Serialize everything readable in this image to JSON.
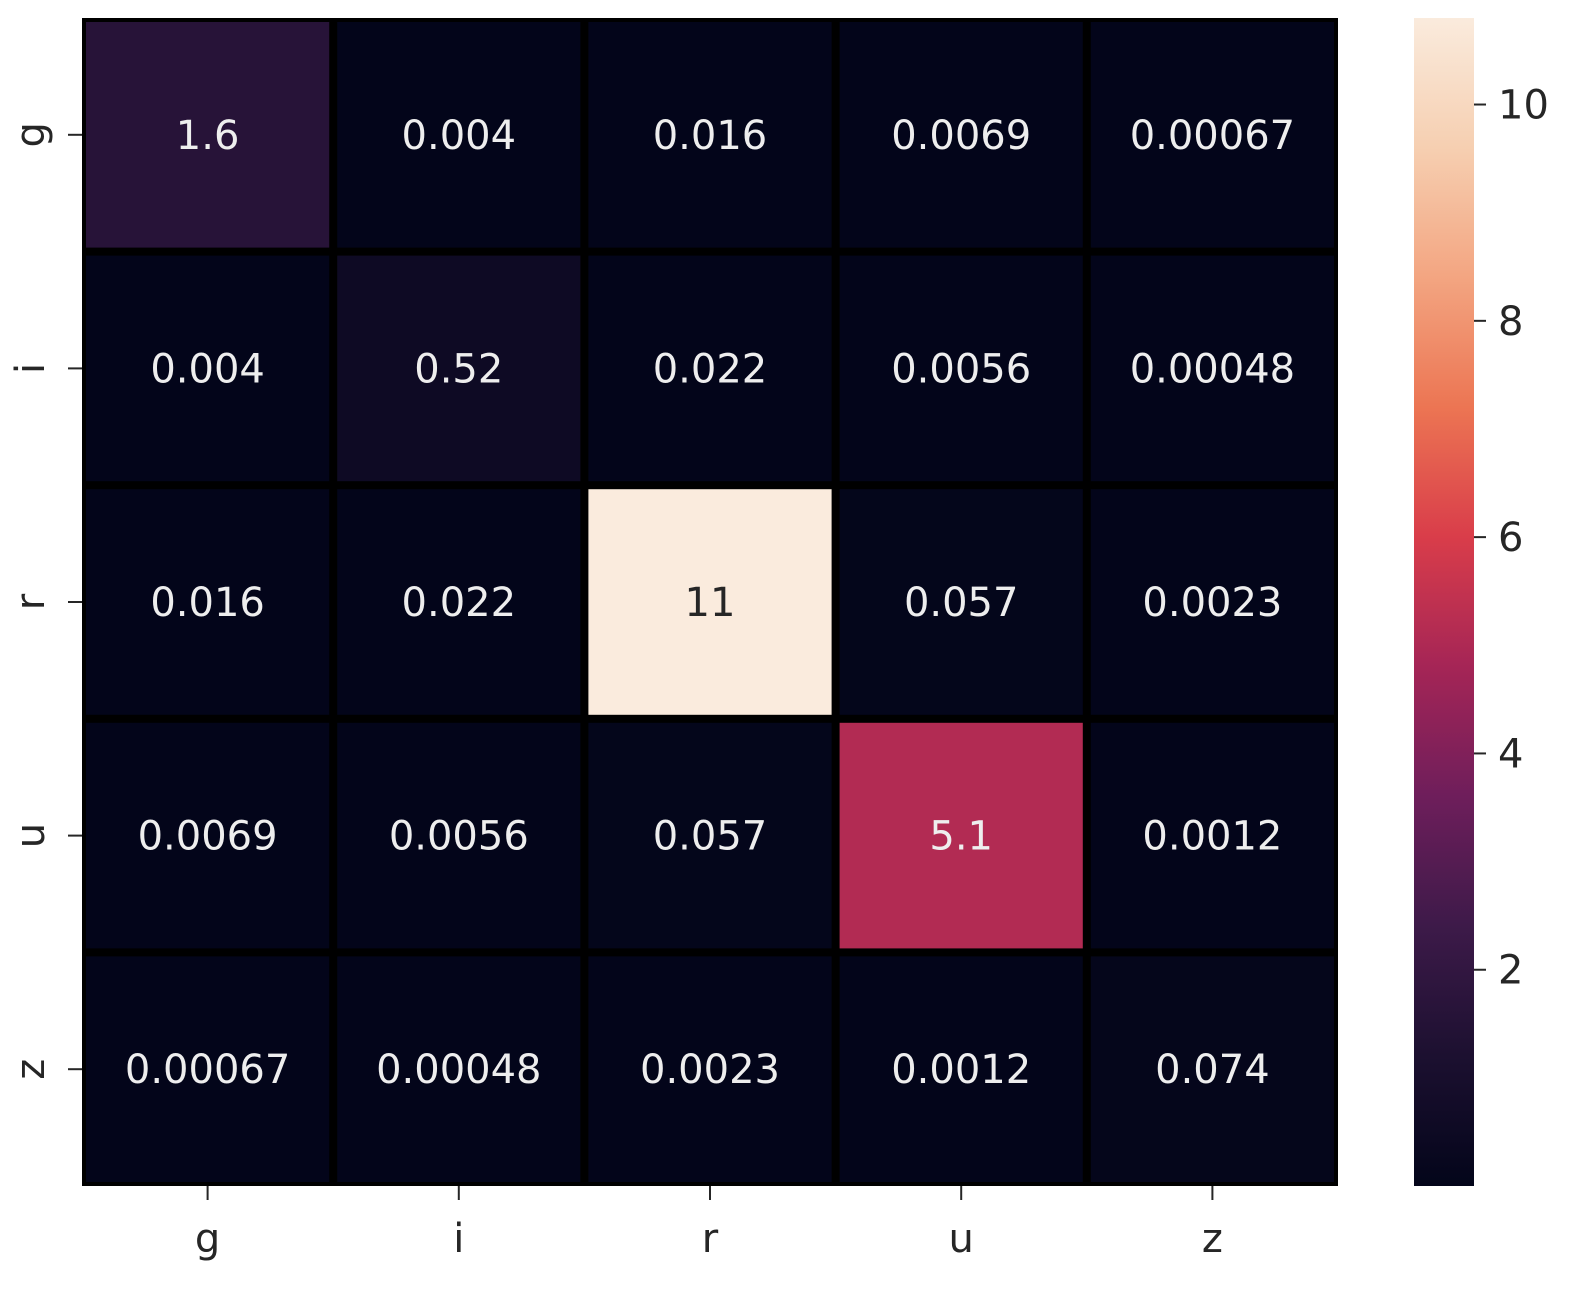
{
  "chart_data": {
    "type": "heatmap",
    "x_categories": [
      "g",
      "i",
      "r",
      "u",
      "z"
    ],
    "y_categories": [
      "g",
      "i",
      "r",
      "u",
      "z"
    ],
    "values": [
      [
        1.6,
        0.004,
        0.016,
        0.0069,
        0.00067
      ],
      [
        0.004,
        0.52,
        0.022,
        0.0056,
        0.00048
      ],
      [
        0.016,
        0.022,
        11,
        0.057,
        0.0023
      ],
      [
        0.0069,
        0.0056,
        0.057,
        5.1,
        0.0012
      ],
      [
        0.00067,
        0.00048,
        0.0023,
        0.0012,
        0.074
      ]
    ],
    "annotations": [
      [
        "1.6",
        "0.004",
        "0.016",
        "0.0069",
        "0.00067"
      ],
      [
        "0.004",
        "0.52",
        "0.022",
        "0.0056",
        "0.00048"
      ],
      [
        "0.016",
        "0.022",
        "11",
        "0.057",
        "0.0023"
      ],
      [
        "0.0069",
        "0.0056",
        "0.057",
        "5.1",
        "0.0012"
      ],
      [
        "0.00067",
        "0.00048",
        "0.0023",
        "0.0012",
        "0.074"
      ]
    ],
    "colorbar": {
      "ticks": [
        2,
        4,
        6,
        8,
        10
      ],
      "tick_labels": [
        "2",
        "4",
        "6",
        "8",
        "10"
      ],
      "range": [
        0.00048,
        10.8
      ]
    },
    "colormap": "rocket",
    "colormap_stops": [
      "#03051a",
      "#1c1030",
      "#3d1a49",
      "#6e1e5b",
      "#a52556",
      "#d93d4a",
      "#ec7553",
      "#f3a581",
      "#f6cfb1",
      "#faebdd"
    ],
    "cell_border_color": "#000000",
    "text_light": "#eeeeee",
    "text_dark": "#262626"
  }
}
